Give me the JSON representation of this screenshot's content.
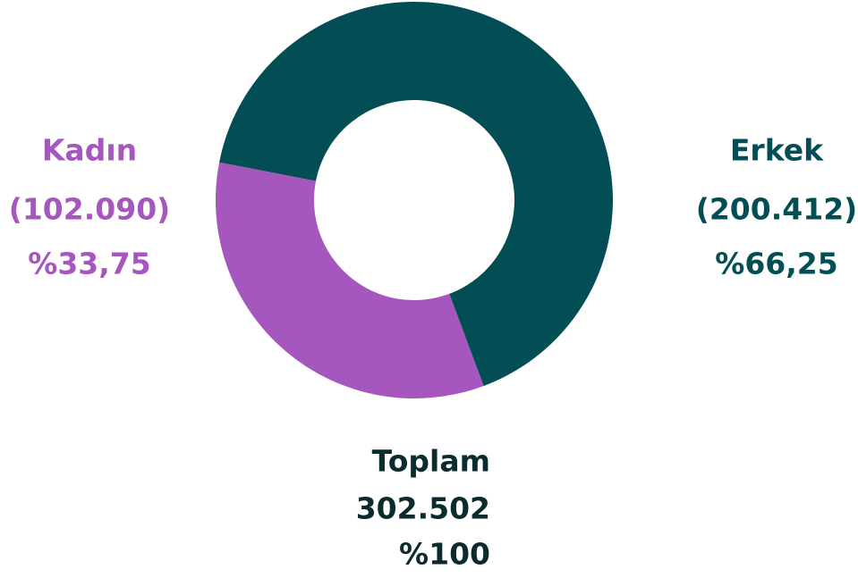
{
  "chart_data": {
    "type": "donut",
    "categories": [
      "Kadın",
      "Erkek"
    ],
    "values": [
      102090,
      200412
    ],
    "value_labels": [
      "(102.090)",
      "(200.412)"
    ],
    "percents": [
      33.75,
      66.25
    ],
    "percent_labels": [
      "%33,75",
      "%66,25"
    ],
    "colors": [
      "#a557bd",
      "#034e55"
    ],
    "total_title": "Toplam",
    "total": 302502,
    "total_label": "302.502",
    "total_percent": 100,
    "total_percent_label": "%100"
  }
}
